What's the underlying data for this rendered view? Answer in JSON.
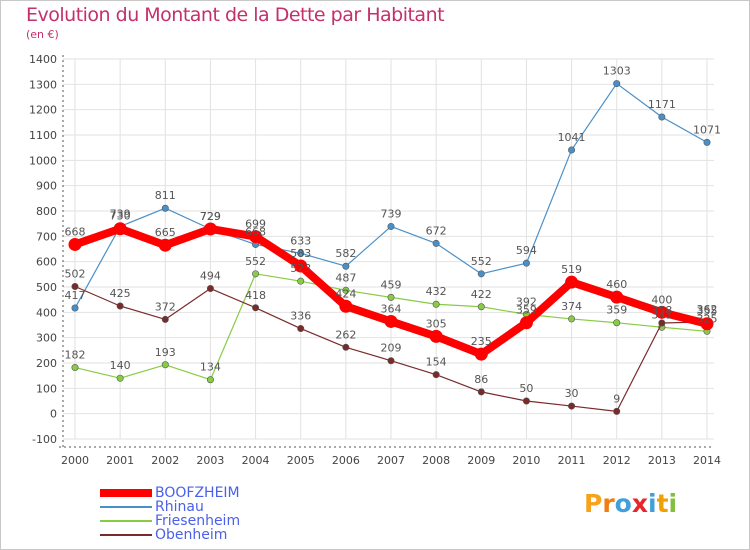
{
  "title": "Evolution du Montant de la Dette par Habitant",
  "subtitle": "(en €)",
  "brand": {
    "letters": [
      "P",
      "r",
      "o",
      "x",
      "i",
      "t",
      "i"
    ],
    "colors": [
      "#f7a21b",
      "#f07d10",
      "#3fa0da",
      "#e8252a",
      "#3fa0da",
      "#f0a000",
      "#80c040"
    ]
  },
  "chart_data": {
    "type": "line",
    "title": "Evolution du Montant de la Dette par Habitant",
    "ylabel": "(en €)",
    "xlabel": "",
    "ylim": [
      -100,
      1400
    ],
    "ytick_step": 100,
    "yticks": [
      "-100",
      "0",
      "100",
      "200",
      "300",
      "400",
      "500",
      "600",
      "700",
      "800",
      "900",
      "1000",
      "1100",
      "1200",
      "1300",
      "1400"
    ],
    "categories": [
      "2000",
      "2001",
      "2002",
      "2003",
      "2004",
      "2005",
      "2006",
      "2007",
      "2008",
      "2009",
      "2010",
      "2011",
      "2012",
      "2013",
      "2014"
    ],
    "grid": true,
    "series": [
      {
        "name": "BOOFZHEIM",
        "color": "#ff0000",
        "values": [
          668,
          730,
          665,
          729,
          699,
          583,
          424,
          364,
          305,
          235,
          359,
          519,
          460,
          400,
          355
        ]
      },
      {
        "name": "Rhinau",
        "color": "#4a90c8",
        "values": [
          417,
          739,
          811,
          729,
          668,
          633,
          582,
          739,
          672,
          552,
          594,
          1041,
          1303,
          1171,
          1071
        ]
      },
      {
        "name": "Friesenheim",
        "color": "#88cc44",
        "values": [
          182,
          140,
          193,
          134,
          552,
          523,
          487,
          459,
          432,
          422,
          392,
          374,
          359,
          341,
          325
        ]
      },
      {
        "name": "Obenheim",
        "color": "#7a2a2a",
        "values": [
          502,
          425,
          372,
          494,
          418,
          336,
          262,
          209,
          154,
          86,
          50,
          30,
          9,
          358,
          362
        ]
      }
    ]
  }
}
